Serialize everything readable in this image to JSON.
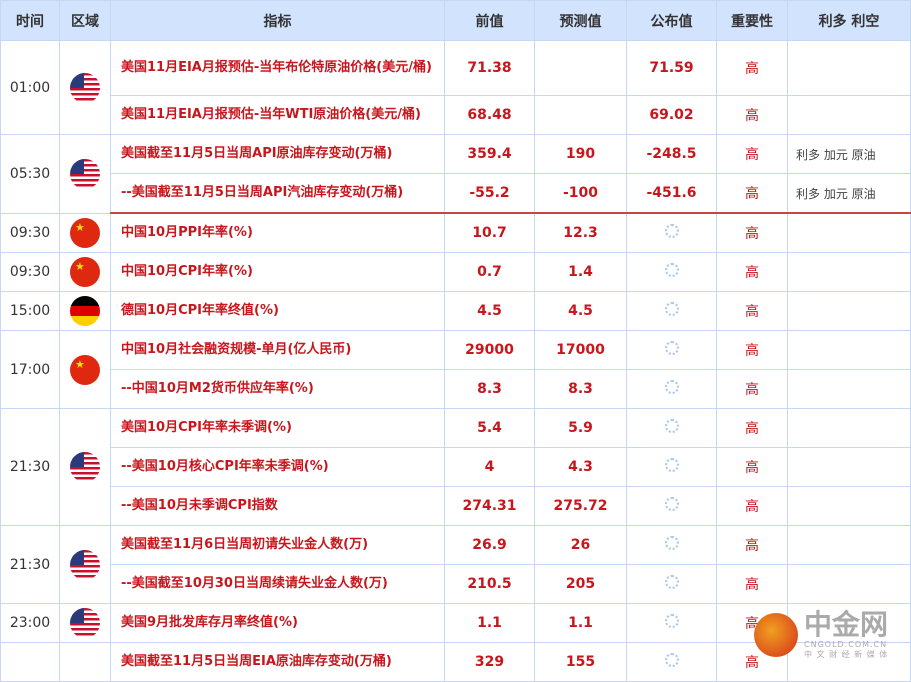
{
  "headers": [
    "时间",
    "区域",
    "指标",
    "前值",
    "预测值",
    "公布值",
    "重要性",
    "利多 利空"
  ],
  "rows": [
    {
      "time": "01:00",
      "flag": "us",
      "ind": "美国11月EIA月报预估-当年布伦特原油价格(美元/桶)",
      "prev": "71.38",
      "fc": "",
      "act": "71.59",
      "imp": "高",
      "eff": ""
    },
    {
      "ind": "美国11月EIA月报预估-当年WTI原油价格(美元/桶)",
      "prev": "68.48",
      "fc": "",
      "act": "69.02",
      "imp": "高",
      "eff": ""
    },
    {
      "time": "05:30",
      "flag": "us",
      "ind": "美国截至11月5日当周API原油库存变动(万桶)",
      "prev": "359.4",
      "fc": "190",
      "act": "-248.5",
      "imp": "高",
      "eff": "利多  加元 原油"
    },
    {
      "ind": "--美国截至11月5日当周API汽油库存变动(万桶)",
      "prev": "-55.2",
      "fc": "-100",
      "act": "-451.6",
      "imp": "高",
      "eff": "利多  加元 原油"
    },
    {
      "time": "09:30",
      "flag": "cn",
      "ind": "中国10月PPI年率(%)",
      "prev": "10.7",
      "fc": "12.3",
      "imp": "高"
    },
    {
      "time": "09:30",
      "flag": "cn",
      "ind": "中国10月CPI年率(%)",
      "prev": "0.7",
      "fc": "1.4",
      "imp": "高"
    },
    {
      "time": "15:00",
      "flag": "de",
      "ind": "德国10月CPI年率终值(%)",
      "prev": "4.5",
      "fc": "4.5",
      "imp": "高"
    },
    {
      "time": "17:00",
      "flag": "cn",
      "ind": "中国10月社会融资规模-单月(亿人民币)",
      "prev": "29000",
      "fc": "17000",
      "imp": "高"
    },
    {
      "ind": "--中国10月M2货币供应年率(%)",
      "prev": "8.3",
      "fc": "8.3",
      "imp": "高"
    },
    {
      "time": "21:30",
      "flag": "us",
      "ind": "美国10月CPI年率未季调(%)",
      "prev": "5.4",
      "fc": "5.9",
      "imp": "高"
    },
    {
      "ind": "--美国10月核心CPI年率未季调(%)",
      "prev": "4",
      "fc": "4.3",
      "imp": "高"
    },
    {
      "ind": "--美国10月未季调CPI指数",
      "prev": "274.31",
      "fc": "275.72",
      "imp": "高"
    },
    {
      "time": "21:30",
      "flag": "us",
      "ind": "美国截至11月6日当周初请失业金人数(万)",
      "prev": "26.9",
      "fc": "26",
      "imp": "高"
    },
    {
      "ind": "--美国截至10月30日当周续请失业金人数(万)",
      "prev": "210.5",
      "fc": "205",
      "imp": "高"
    },
    {
      "time": "23:00",
      "flag": "us",
      "ind": "美国9月批发库存月率终值(%)",
      "prev": "1.1",
      "fc": "1.1",
      "imp": "高"
    },
    {
      "time": "",
      "flag": "",
      "ind": "美国截至11月5日当周EIA原油库存变动(万桶)",
      "prev": "329",
      "fc": "155",
      "imp": "高"
    }
  ],
  "groups": [
    [
      0,
      2
    ],
    [
      2,
      2
    ],
    [
      4,
      1
    ],
    [
      5,
      1
    ],
    [
      6,
      1
    ],
    [
      7,
      2
    ],
    [
      9,
      3
    ],
    [
      12,
      2
    ],
    [
      14,
      1
    ],
    [
      15,
      1
    ]
  ],
  "logo": {
    "name": "中金网",
    "domain": "CNGOLD.COM.CN",
    "tagline": "中 文 财 经 新 媒 体"
  }
}
